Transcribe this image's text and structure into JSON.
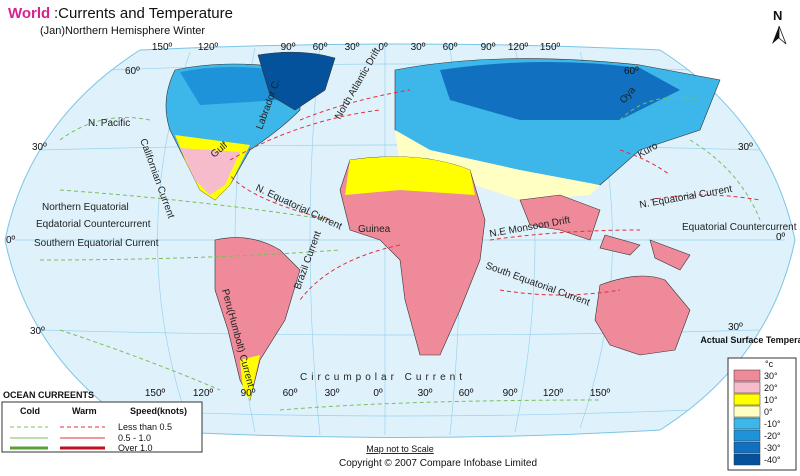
{
  "header": {
    "title_highlight": "World",
    "title_rest": ":Currents and Temperature",
    "subtitle": "(Jan)Northern Hemisphere Winter",
    "north": "N"
  },
  "longitudes_top": [
    "150º",
    "120º",
    "90º",
    "60º",
    "30º",
    "0º",
    "30º",
    "60º",
    "90º",
    "120º",
    "150º"
  ],
  "longitudes_bottom": [
    "150º",
    "120º",
    "90º",
    "60º",
    "30º",
    "0º",
    "30º",
    "60º",
    "90º",
    "120º",
    "150º"
  ],
  "latitudes_left": [
    "60º",
    "30º",
    "0º",
    "30º"
  ],
  "latitudes_right": [
    "60º",
    "30º",
    "0º",
    "30º"
  ],
  "currents": [
    "N. Pacific",
    "Californian Current",
    "Labrador C.",
    "North Atlantic Drift",
    "Gulf",
    "N. Equatorial Current",
    "Northern Equatorial",
    "Eqdatorial Countercurrent",
    "Southern Equatorial Current",
    "Guinea",
    "N.E Monsoon Drift",
    "South Equatorial Current",
    "Peru(Humbolt) Current",
    "Brazil Current",
    "Circumpolar Current",
    "Oya",
    "Kuro",
    "N. Equatorial Current",
    "Equatorial Countercurrent"
  ],
  "legend": {
    "title": "OCEAN CURREENTS",
    "cold": "Cold",
    "warm": "Warm",
    "speed": "Speed(knots)",
    "speeds": [
      "Less than 0.5",
      "0.5 - 1.0",
      "Over 1.0"
    ]
  },
  "temperature_legend": {
    "title": "Actual Surface Temperature",
    "unit": "°c",
    "items": [
      {
        "label": "30°",
        "color": "#ee8a9a"
      },
      {
        "label": "20°",
        "color": "#f6bccb"
      },
      {
        "label": "10°",
        "color": "#ffff00"
      },
      {
        "label": "0°",
        "color": "#ffffc4"
      },
      {
        "label": "-10°",
        "color": "#3db6ea"
      },
      {
        "label": "-20°",
        "color": "#1e93d9"
      },
      {
        "label": "-30°",
        "color": "#1170bf"
      },
      {
        "label": "-40°",
        "color": "#05529c"
      }
    ]
  },
  "footer": {
    "scale_note": "Map not to Scale",
    "copyright": "Copyright © 2007 Compare Infobase Limited"
  }
}
